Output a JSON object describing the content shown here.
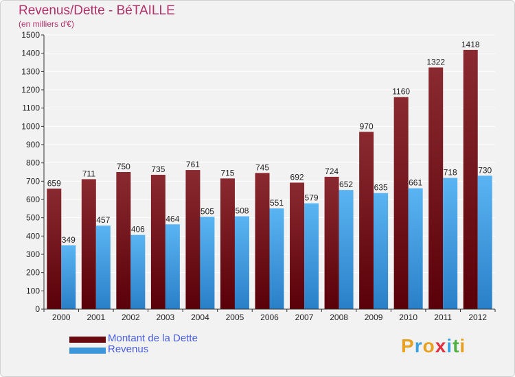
{
  "title": "Revenus/Dette - BéTAILLE",
  "subtitle": "(en milliers d'€)",
  "logo_letters": [
    {
      "ch": "P",
      "color": "#e8a020"
    },
    {
      "ch": "r",
      "color": "#3aa0e0"
    },
    {
      "ch": "o",
      "color": "#e8a020"
    },
    {
      "ch": "x",
      "color": "#e03040"
    },
    {
      "ch": "i",
      "color": "#3aa0e0"
    },
    {
      "ch": "t",
      "color": "#50b040"
    },
    {
      "ch": "i",
      "color": "#e8a020"
    }
  ],
  "legend": [
    {
      "label": "Montant de la Dette",
      "color": "#6a0a10"
    },
    {
      "label": "Revenus",
      "color": "#3c96dc"
    }
  ],
  "chart_data": {
    "type": "bar",
    "categories": [
      "2000",
      "2001",
      "2002",
      "2003",
      "2004",
      "2005",
      "2006",
      "2007",
      "2008",
      "2009",
      "2010",
      "2011",
      "2012"
    ],
    "series": [
      {
        "name": "Montant de la Dette",
        "color": "#7a1a20",
        "values": [
          659,
          711,
          750,
          735,
          761,
          715,
          745,
          692,
          724,
          970,
          1160,
          1322,
          1418
        ]
      },
      {
        "name": "Revenus",
        "color": "#4aa6ea",
        "values": [
          349,
          457,
          406,
          464,
          505,
          508,
          551,
          579,
          652,
          635,
          661,
          718,
          730
        ]
      }
    ],
    "yticks": [
      0,
      100,
      200,
      300,
      400,
      500,
      600,
      700,
      800,
      900,
      1000,
      1100,
      1200,
      1300,
      1400,
      1500
    ],
    "ylim": [
      0,
      1500
    ],
    "grid": true
  }
}
